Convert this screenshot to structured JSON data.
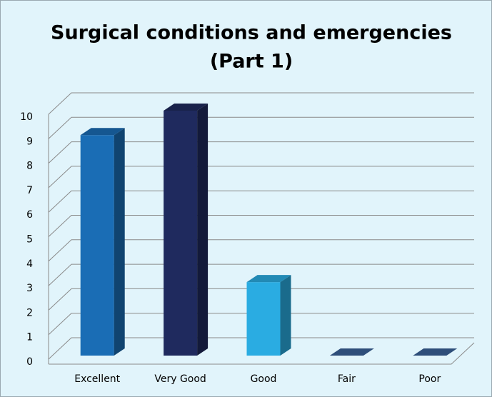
{
  "chart_data": {
    "type": "bar3d",
    "title": [
      "Surgical conditions and emergencies",
      "(Part 1)"
    ],
    "categories": [
      "Excellent",
      "Very Good",
      "Good",
      "Fair",
      "Poor"
    ],
    "values": [
      9,
      10,
      3,
      0,
      0
    ],
    "colors": [
      "#1a6db5",
      "#1f2a5e",
      "#2aace2",
      "#3a6299",
      "#3a6299"
    ],
    "ylim": [
      0,
      10
    ],
    "yticks": [
      0,
      1,
      2,
      3,
      4,
      5,
      6,
      7,
      8,
      9,
      10
    ],
    "grid": true
  }
}
